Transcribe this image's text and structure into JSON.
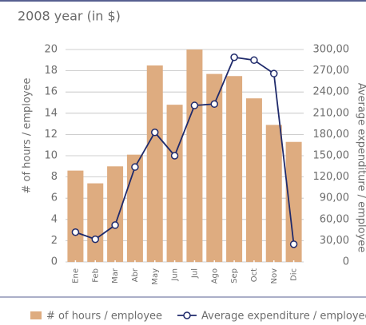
{
  "chart_data": {
    "type": "bar_line",
    "title": "2008 year (in $)",
    "y_label": "# of hours / employee",
    "y2_label": "Average expenditure / employee",
    "categories": [
      "Ene",
      "Feb",
      "Mar",
      "Abr",
      "May",
      "Jun",
      "Jul",
      "Ago",
      "Sep",
      "Oct",
      "Nov",
      "Dic"
    ],
    "series": [
      {
        "name": "# of hours / employee",
        "color": "#deac80",
        "values": [
          8.6,
          7.4,
          9.0,
          10.1,
          18.5,
          14.8,
          20.0,
          17.7,
          17.5,
          15.4,
          12.9,
          11.3
        ]
      },
      {
        "name": "Average expenditure / employee",
        "color": "#1f2a6b",
        "axis": "y2",
        "values": [
          42,
          32,
          52,
          134,
          183,
          150,
          221,
          223,
          289,
          285,
          266,
          25
        ]
      }
    ],
    "ylim": [
      0,
      20
    ],
    "yticks": [
      0,
      2,
      4,
      6,
      8,
      10,
      12,
      14,
      16,
      18,
      20
    ],
    "y2lim": [
      0,
      300
    ],
    "y2ticks": [
      0,
      {
        "value": 30,
        "label": "30,00"
      },
      {
        "value": 60,
        "label": "60,00"
      },
      {
        "value": 90,
        "label": "90,00"
      },
      {
        "value": 120,
        "label": "120,00"
      },
      {
        "value": 150,
        "label": "150,00"
      },
      {
        "value": 180,
        "label": "180,00"
      },
      {
        "value": 210,
        "label": "210,00"
      },
      {
        "value": 240,
        "label": "240,00"
      },
      {
        "value": 270,
        "label": "270,00"
      },
      {
        "value": 300,
        "label": "300,00"
      }
    ],
    "grid": true
  }
}
